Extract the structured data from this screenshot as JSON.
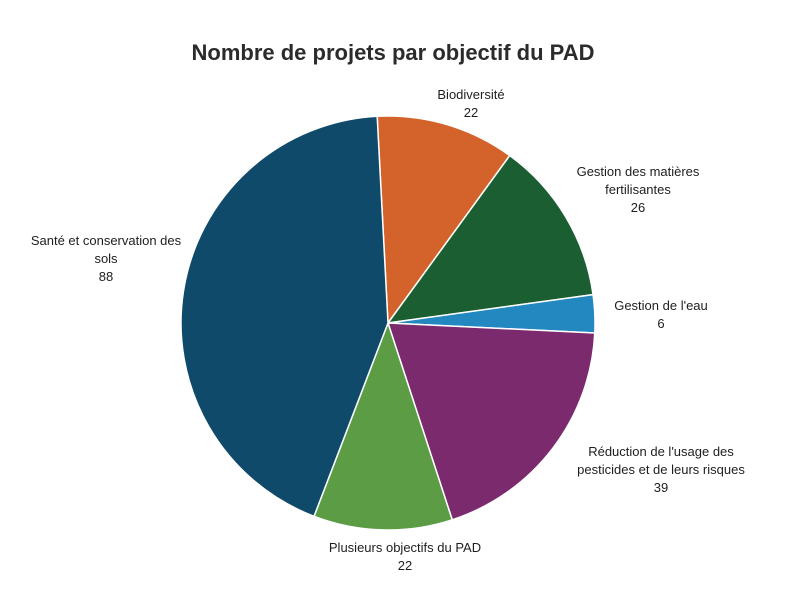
{
  "chart_data": {
    "type": "pie",
    "title": "Nombre de projets par objectif du PAD",
    "categories": [
      "Biodiversité",
      "Gestion des matières fertilisantes",
      "Gestion de l'eau",
      "Réduction de l'usage des pesticides et de leurs risques",
      "Plusieurs objectifs du PAD",
      "Santé et conservation des sols"
    ],
    "values": [
      22,
      26,
      6,
      39,
      22,
      88
    ],
    "colors": [
      "#d4622b",
      "#1b5e32",
      "#2387c0",
      "#7b2a6e",
      "#5b9c45",
      "#0f4a6a"
    ]
  }
}
